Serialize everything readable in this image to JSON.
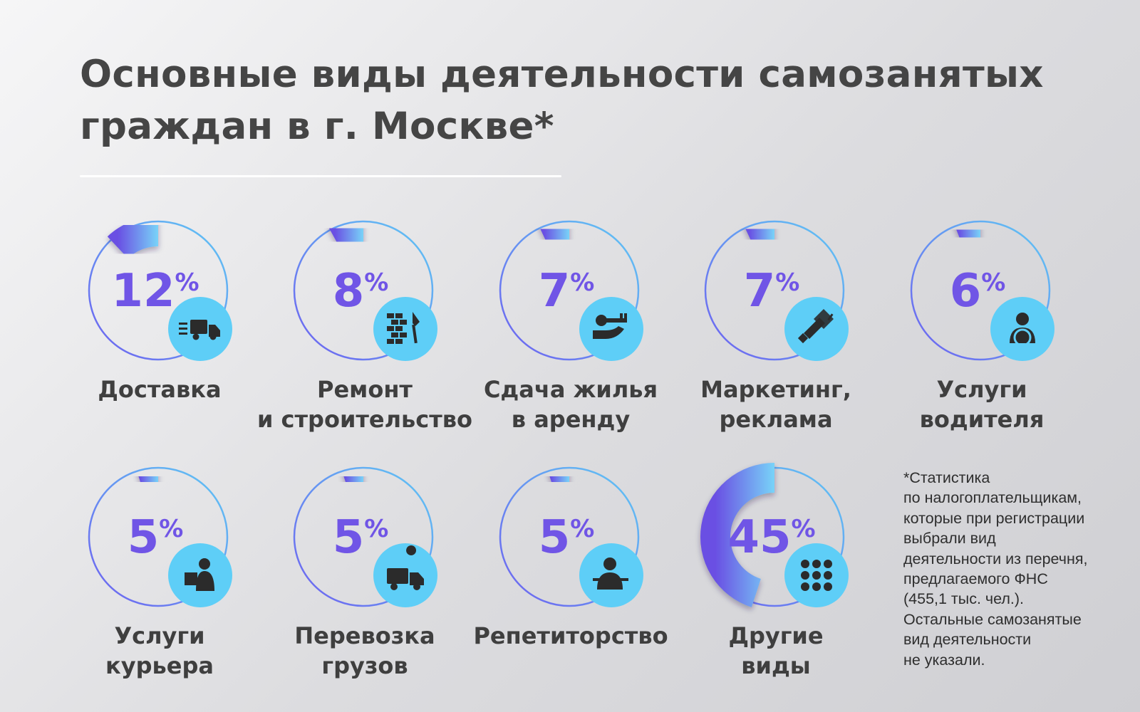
{
  "title": {
    "line1": "Основные виды деятельности самозанятых",
    "line2": "граждан в г. Москве*"
  },
  "chart_data": {
    "type": "pie",
    "title": "Основные виды деятельности самозанятых граждан в г. Москве*",
    "unit": "%",
    "items": [
      {
        "label_lines": [
          "Доставка"
        ],
        "value": 12,
        "icon": "delivery-truck-icon"
      },
      {
        "label_lines": [
          "Ремонт",
          "и строительство"
        ],
        "value": 8,
        "icon": "brick-trowel-icon"
      },
      {
        "label_lines": [
          "Сдача жилья",
          "в аренду"
        ],
        "value": 7,
        "icon": "key-hand-icon"
      },
      {
        "label_lines": [
          "Маркетинг,",
          "реклама"
        ],
        "value": 7,
        "icon": "megaphone-icon"
      },
      {
        "label_lines": [
          "Услуги",
          "водителя"
        ],
        "value": 6,
        "icon": "driver-icon"
      },
      {
        "label_lines": [
          "Услуги",
          "курьера"
        ],
        "value": 5,
        "icon": "courier-icon"
      },
      {
        "label_lines": [
          "Перевозка",
          "грузов"
        ],
        "value": 5,
        "icon": "cargo-truck-icon"
      },
      {
        "label_lines": [
          "Репетиторство"
        ],
        "value": 5,
        "icon": "tutor-icon"
      },
      {
        "label_lines": [
          "Другие",
          "виды"
        ],
        "value": 45,
        "icon": "grid-dots-icon"
      }
    ]
  },
  "footnote": {
    "lines": [
      "*Статистика",
      "по налогоплательщикам,",
      "которые при регистрации",
      "выбрали вид",
      "деятельности из перечня,",
      "предлагаемого ФНС",
      "(455,1 тыс. чел.).",
      "Остальные самозанятые",
      "вид деятельности",
      "не указали."
    ]
  },
  "colors": {
    "ring_start": "#6e5ff0",
    "ring_end": "#5fc9f4",
    "arc_start": "#6a4fe3",
    "arc_end": "#78d3f8",
    "value_text": "#7055e6",
    "icon_circle": "#5ecef7",
    "icon_fg": "#2b2b2b"
  }
}
